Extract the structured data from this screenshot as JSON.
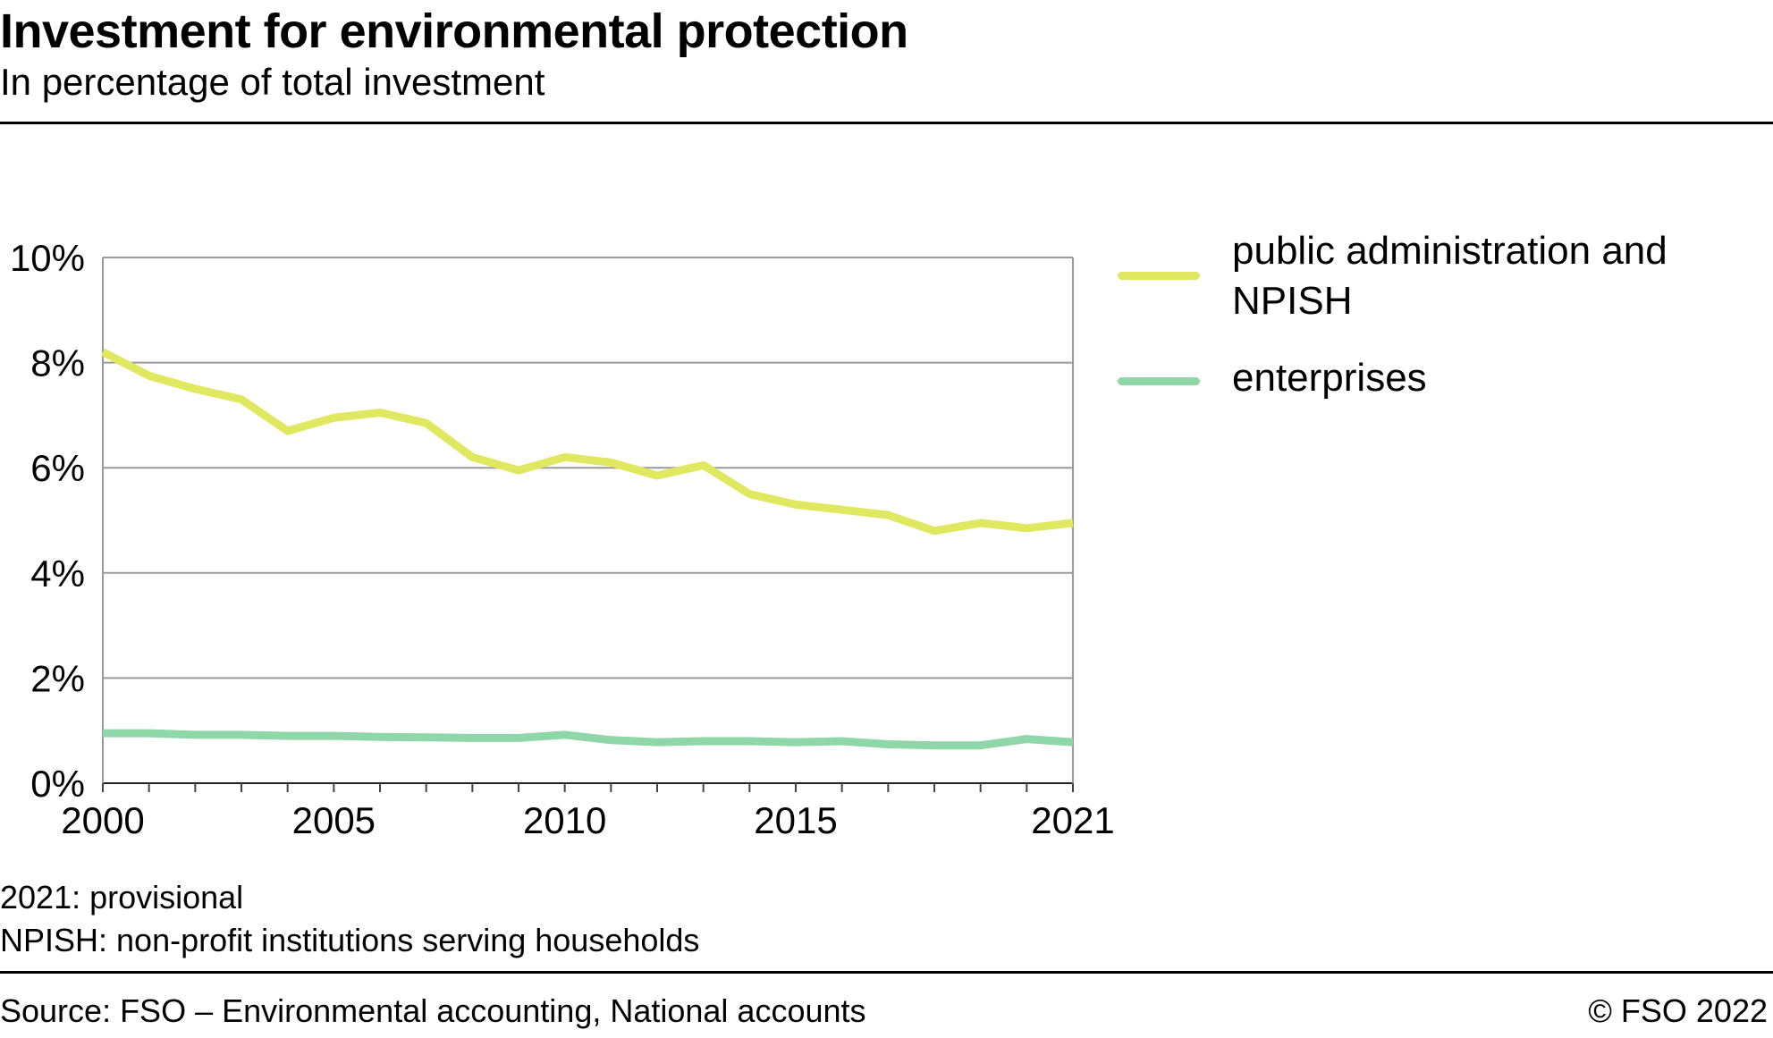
{
  "header": {
    "title": "Investment for environmental protection",
    "subtitle": "In percentage of total investment"
  },
  "notes": [
    "2021: provisional",
    "NPISH: non-profit institutions serving households"
  ],
  "footer": {
    "source": "Source: FSO – Environmental accounting, National accounts",
    "copyright": "© FSO 2022"
  },
  "chart_data": {
    "type": "line",
    "x": [
      2000,
      2001,
      2002,
      2003,
      2004,
      2005,
      2006,
      2007,
      2008,
      2009,
      2010,
      2011,
      2012,
      2013,
      2014,
      2015,
      2016,
      2017,
      2018,
      2019,
      2020,
      2021
    ],
    "x_ticks": [
      2000,
      2005,
      2010,
      2015,
      2021
    ],
    "y_ticks": [
      "0%",
      "2%",
      "4%",
      "6%",
      "8%",
      "10%"
    ],
    "ylim": [
      0,
      10
    ],
    "xlim": [
      2000,
      2021
    ],
    "grid": true,
    "legend_position": "right",
    "series": [
      {
        "name": "public administration and NPISH",
        "color": "#dfe85f",
        "values": [
          8.2,
          7.75,
          7.5,
          7.3,
          6.7,
          6.95,
          7.05,
          6.85,
          6.2,
          5.95,
          6.2,
          6.1,
          5.85,
          6.05,
          5.5,
          5.3,
          5.2,
          5.1,
          4.8,
          4.95,
          4.85,
          4.95
        ]
      },
      {
        "name": "enterprises",
        "color": "#8fd6a8",
        "values": [
          0.95,
          0.95,
          0.92,
          0.92,
          0.9,
          0.9,
          0.88,
          0.87,
          0.86,
          0.86,
          0.92,
          0.82,
          0.78,
          0.8,
          0.8,
          0.78,
          0.8,
          0.74,
          0.72,
          0.72,
          0.84,
          0.78
        ]
      }
    ]
  }
}
